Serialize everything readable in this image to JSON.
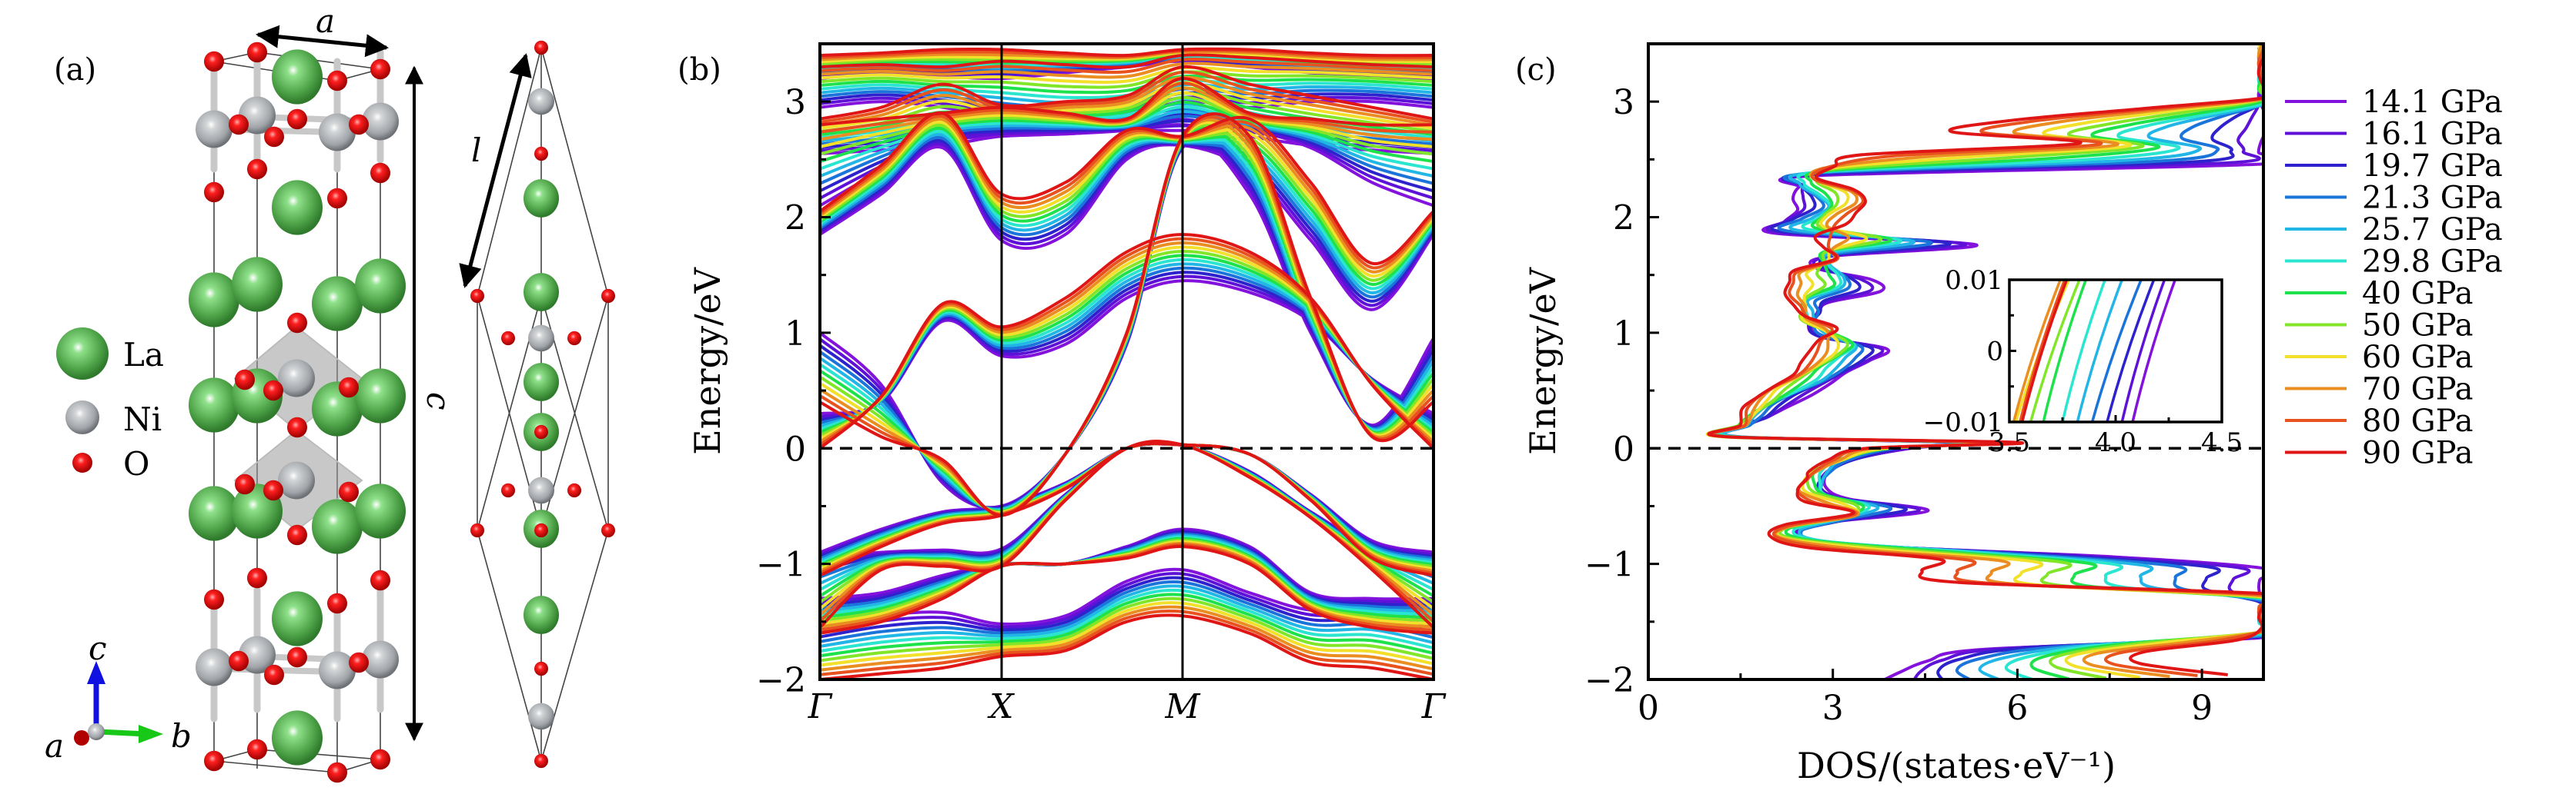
{
  "figure": {
    "panels": [
      "(a)",
      "(b)",
      "(c)"
    ]
  },
  "structure": {
    "legend": [
      {
        "element": "La",
        "color": "#3f9b3a"
      },
      {
        "element": "Ni",
        "color": "#a8acb0"
      },
      {
        "element": "O",
        "color": "#e01010"
      }
    ],
    "lattice_labels": {
      "a": "a",
      "c": "c",
      "l": "l"
    },
    "axes_indicator": {
      "a": "a",
      "b": "b",
      "c": "c",
      "a_color": "#b00000",
      "b_color": "#18c818",
      "c_color": "#1010e0"
    }
  },
  "chart_data": [
    {
      "id": "band_structure",
      "type": "line",
      "title": "",
      "xlabel": "",
      "ylabel": "Energy/eV",
      "ylim": [
        -2,
        3.5
      ],
      "yticks": [
        -2,
        -1,
        0,
        1,
        2,
        3
      ],
      "yticks_minor": [
        -1.5,
        -0.5,
        0.5,
        1.5,
        2.5
      ],
      "kpath": [
        {
          "label": "Γ",
          "pos": 0.0
        },
        {
          "label": "X",
          "pos": 0.296
        },
        {
          "label": "M",
          "pos": 0.591
        },
        {
          "label": "Γ",
          "pos": 1.0
        }
      ],
      "fermi_level": 0,
      "k_samples": [
        0.0,
        0.1,
        0.2,
        0.296,
        0.4,
        0.5,
        0.591,
        0.7,
        0.8,
        0.9,
        1.0
      ],
      "bands_low_pressure": [
        [
          -1.55,
          -1.45,
          -1.42,
          -1.52,
          -1.45,
          -1.15,
          -1.05,
          -1.25,
          -1.4,
          -1.38,
          -1.5
        ],
        [
          -1.3,
          -1.25,
          -1.1,
          -1.0,
          -1.0,
          -0.85,
          -0.7,
          -0.85,
          -1.25,
          -1.3,
          -1.3
        ],
        [
          -0.9,
          -0.7,
          -0.55,
          -0.5,
          -0.3,
          0.0,
          0.03,
          -0.05,
          -0.4,
          -0.8,
          -0.9
        ],
        [
          -0.95,
          -0.9,
          -0.88,
          -0.87,
          -0.4,
          0.0,
          0.03,
          -0.2,
          -0.55,
          -0.85,
          -0.95
        ],
        [
          0.3,
          0.4,
          1.1,
          0.8,
          0.9,
          1.3,
          1.45,
          1.35,
          1.1,
          0.6,
          0.3
        ],
        [
          1.0,
          0.55,
          -0.3,
          -0.5,
          -0.05,
          0.9,
          2.6,
          2.2,
          1.0,
          0.2,
          0.95
        ],
        [
          1.85,
          2.2,
          2.6,
          1.8,
          1.85,
          2.5,
          2.62,
          2.4,
          1.8,
          1.2,
          1.85
        ],
        [
          2.1,
          2.4,
          2.65,
          2.7,
          2.72,
          2.75,
          2.75,
          2.75,
          2.6,
          2.3,
          2.1
        ],
        [
          2.55,
          2.58,
          2.62,
          2.7,
          2.72,
          2.75,
          2.8,
          2.7,
          2.62,
          2.58,
          2.55
        ],
        [
          2.95,
          3.0,
          2.95,
          2.85,
          2.8,
          2.85,
          3.0,
          2.95,
          3.0,
          3.0,
          2.95
        ],
        [
          3.2,
          3.25,
          3.22,
          3.2,
          3.25,
          3.3,
          3.35,
          3.3,
          3.25,
          3.22,
          3.2
        ]
      ],
      "bands_high_pressure": [
        [
          -2.0,
          -1.95,
          -1.9,
          -1.8,
          -1.75,
          -1.5,
          -1.45,
          -1.6,
          -1.85,
          -1.9,
          -2.0
        ],
        [
          -1.6,
          -1.5,
          -1.3,
          -1.02,
          -1.0,
          -0.95,
          -0.85,
          -1.0,
          -1.4,
          -1.55,
          -1.6
        ],
        [
          -1.1,
          -0.85,
          -0.65,
          -0.58,
          -0.35,
          0.0,
          0.03,
          -0.05,
          -0.45,
          -0.95,
          -1.1
        ],
        [
          -1.55,
          -1.05,
          -1.02,
          -1.02,
          -0.45,
          0.0,
          0.03,
          -0.25,
          -0.6,
          -1.05,
          -1.55
        ],
        [
          0.0,
          0.45,
          1.25,
          1.05,
          1.3,
          1.7,
          1.85,
          1.7,
          1.3,
          0.55,
          0.0
        ],
        [
          0.4,
          0.1,
          -0.1,
          -0.58,
          -0.05,
          1.0,
          2.7,
          2.7,
          1.3,
          0.1,
          0.4
        ],
        [
          2.05,
          2.45,
          2.9,
          2.2,
          2.3,
          2.75,
          2.7,
          2.85,
          2.3,
          1.6,
          2.05
        ],
        [
          2.8,
          2.85,
          2.9,
          2.95,
          2.9,
          2.85,
          3.2,
          2.9,
          2.85,
          2.8,
          2.8
        ],
        [
          2.85,
          2.95,
          3.15,
          2.97,
          3.0,
          3.05,
          3.3,
          3.15,
          3.05,
          2.95,
          2.85
        ],
        [
          3.3,
          3.32,
          3.3,
          3.35,
          3.32,
          3.3,
          3.4,
          3.38,
          3.35,
          3.32,
          3.3
        ],
        [
          3.4,
          3.42,
          3.45,
          3.45,
          3.42,
          3.4,
          3.45,
          3.45,
          3.42,
          3.4,
          3.4
        ]
      ]
    },
    {
      "id": "dos",
      "type": "line",
      "title": "",
      "xlabel": "DOS/(states·eV⁻¹)",
      "ylabel": "Energy/eV",
      "xlim": [
        0,
        10
      ],
      "ylim": [
        -2,
        3.5
      ],
      "xticks": [
        0,
        3,
        6,
        9
      ],
      "xticks_minor": [
        1.5,
        4.5,
        7.5
      ],
      "yticks": [
        -2,
        -1,
        0,
        1,
        2,
        3
      ],
      "yticks_minor": [
        -1.5,
        -0.5,
        0.5,
        1.5,
        2.5
      ],
      "fermi_level": 0,
      "energy_samples": [
        -2.0,
        -1.9,
        -1.8,
        -1.7,
        -1.6,
        -1.5,
        -1.4,
        -1.3,
        -1.2,
        -1.1,
        -1.0,
        -0.9,
        -0.8,
        -0.7,
        -0.6,
        -0.5,
        -0.4,
        -0.3,
        -0.2,
        -0.1,
        0.0,
        0.05,
        0.1,
        0.2,
        0.3,
        0.4,
        0.5,
        0.6,
        0.7,
        0.8,
        0.9,
        1.0,
        1.1,
        1.2,
        1.3,
        1.4,
        1.5,
        1.6,
        1.7,
        1.8,
        1.9,
        2.0,
        2.1,
        2.2,
        2.3,
        2.4,
        2.5,
        2.6,
        2.7,
        2.8,
        2.9,
        3.0,
        3.1,
        3.2,
        3.3,
        3.4,
        3.5
      ],
      "dos_low_pressure": [
        3.7,
        4.0,
        4.5,
        5.5,
        10,
        10,
        10,
        10,
        10,
        10,
        10,
        7.5,
        3.5,
        2.5,
        3.0,
        4.5,
        3.2,
        2.9,
        3.0,
        3.3,
        4.2,
        5.0,
        1.5,
        1.6,
        1.9,
        2.2,
        2.6,
        3.0,
        3.3,
        3.6,
        3.8,
        2.8,
        2.7,
        2.8,
        2.9,
        3.7,
        3.6,
        2.8,
        3.0,
        5.3,
        2.0,
        2.2,
        2.5,
        2.4,
        2.4,
        2.7,
        10,
        10,
        10,
        10,
        10,
        10,
        10,
        10,
        10,
        10,
        10
      ],
      "dos_high_pressure": [
        9.5,
        8.0,
        8.0,
        9.5,
        10,
        10,
        10,
        10,
        5.0,
        4.5,
        4.8,
        2.6,
        1.9,
        2.2,
        3.4,
        2.6,
        2.4,
        2.5,
        2.6,
        3.0,
        3.6,
        6.0,
        1.2,
        1.5,
        1.6,
        1.8,
        2.0,
        2.3,
        2.5,
        2.7,
        2.8,
        3.0,
        2.5,
        2.4,
        2.3,
        2.3,
        2.3,
        3.0,
        2.9,
        2.8,
        3.2,
        3.3,
        3.5,
        3.4,
        2.8,
        3.0,
        3.4,
        7.0,
        5.0,
        6.0,
        8.0,
        10,
        10,
        10,
        10,
        10,
        10
      ],
      "inset": {
        "xlim": [
          3.5,
          4.5
        ],
        "ylim": [
          -0.01,
          0.01
        ],
        "xticks": [
          "3.5",
          "4.0",
          "4.5"
        ],
        "yticks": [
          "−0.01",
          "0",
          "0.01"
        ],
        "dos_at_ymin": [
          4.08,
          4.03,
          3.96,
          3.89,
          3.82,
          3.75,
          3.66,
          3.6,
          3.53,
          3.52,
          3.55,
          3.56
        ],
        "dos_at_ymax": [
          4.28,
          4.23,
          4.18,
          4.12,
          4.03,
          3.95,
          3.86,
          3.83,
          3.78,
          3.74,
          3.76,
          3.77
        ]
      }
    }
  ],
  "legend": {
    "series": [
      {
        "name": "14.1 GPa",
        "color": "#8212dc"
      },
      {
        "name": "16.1 GPa",
        "color": "#5e12d8"
      },
      {
        "name": "19.7 GPa",
        "color": "#2e22cc"
      },
      {
        "name": "21.3 GPa",
        "color": "#1a74da"
      },
      {
        "name": "25.7 GPa",
        "color": "#22b6e6"
      },
      {
        "name": "29.8 GPa",
        "color": "#2ae6d0"
      },
      {
        "name": "40 GPa",
        "color": "#1ee24c"
      },
      {
        "name": "50 GPa",
        "color": "#82e628"
      },
      {
        "name": "60 GPa",
        "color": "#f2e02a"
      },
      {
        "name": "70 GPa",
        "color": "#ea8e22"
      },
      {
        "name": "80 GPa",
        "color": "#e8521e"
      },
      {
        "name": "90 GPa",
        "color": "#e01616"
      }
    ]
  }
}
